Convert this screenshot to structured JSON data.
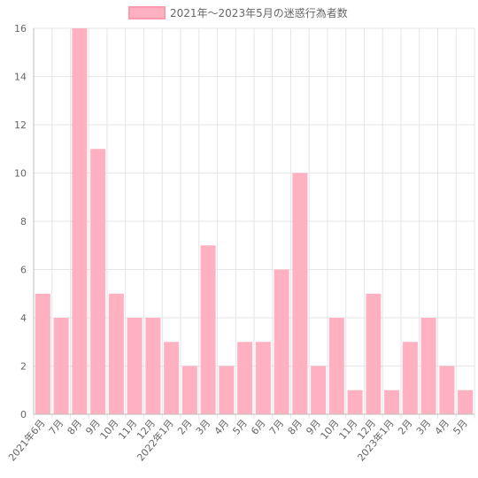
{
  "chart_data": {
    "type": "bar",
    "legend": {
      "label": "2021年～2023年5月の迷惑行為者数",
      "position": "top"
    },
    "categories": [
      "2021年6月",
      "7月",
      "8月",
      "9月",
      "10月",
      "11月",
      "12月",
      "2022年1月",
      "2月",
      "3月",
      "4月",
      "5月",
      "6月",
      "7月",
      "8月",
      "9月",
      "10月",
      "11月",
      "12月",
      "2023年1月",
      "2月",
      "3月",
      "4月",
      "5月"
    ],
    "series": [
      {
        "name": "2021年～2023年5月の迷惑行為者数",
        "values": [
          5,
          4,
          16,
          11,
          5,
          4,
          4,
          3,
          2,
          7,
          2,
          3,
          3,
          6,
          10,
          2,
          4,
          1,
          5,
          1,
          3,
          4,
          2,
          1
        ]
      }
    ],
    "ylim": [
      0,
      16
    ],
    "yticks": [
      0,
      2,
      4,
      6,
      8,
      10,
      12,
      14,
      16
    ],
    "grid": true,
    "colors": {
      "bar_fill": "#ffb1c1",
      "bar_border": "#ff99ad"
    }
  }
}
